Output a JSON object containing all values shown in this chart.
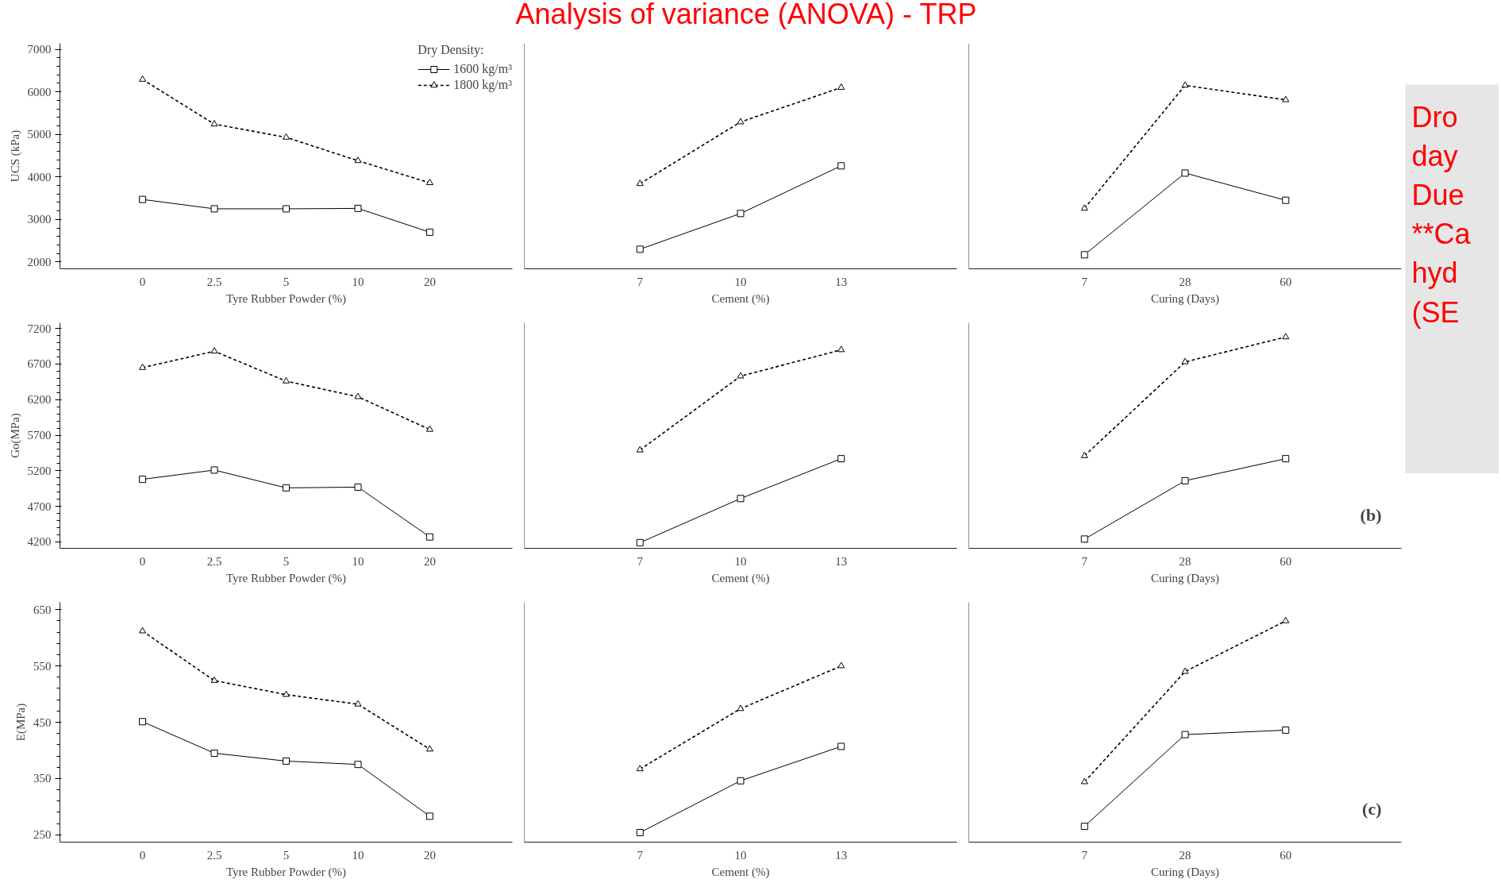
{
  "chart_data": [
    {
      "type": "other",
      "title": "Analysis of variance (ANOVA) - TRP"
    },
    {
      "type": "line",
      "xlabel": "Tyre Rubber Powder (%)",
      "ylabel": "UCS (kPa)",
      "legend": "top right",
      "legend_title": "Dry Density:",
      "categories": [
        "0",
        "2.5",
        "5",
        "10",
        "20"
      ],
      "ylim": [
        1840,
        7140
      ],
      "yticks": [
        2000,
        3000,
        4000,
        5000,
        6000,
        7000
      ],
      "series": [
        {
          "name": "1600 kg/m³",
          "color": "#000000",
          "marker": "square",
          "line_style": "solid",
          "values": [
            3470,
            3250,
            3250,
            3260,
            2700
          ]
        },
        {
          "name": "1800 kg/m³",
          "color": "#000000",
          "marker": "triangle",
          "line_style": "dashed",
          "values": [
            6290,
            5240,
            4930,
            4380,
            3860
          ]
        }
      ]
    },
    {
      "type": "line",
      "xlabel": "Cement (%)",
      "categories": [
        "7",
        "10",
        "13"
      ],
      "ylim": [
        1840,
        7140
      ],
      "yticks": [
        2000,
        3000,
        4000,
        5000,
        6000,
        7000
      ],
      "tick_labels": "x",
      "series": [
        {
          "color": "#000000",
          "marker": "square",
          "line_style": "solid",
          "values": [
            2300,
            3140,
            4260
          ]
        },
        {
          "color": "#000000",
          "marker": "triangle",
          "line_style": "dashed",
          "values": [
            3840,
            5290,
            6100
          ]
        }
      ]
    },
    {
      "type": "line",
      "xlabel": "Curing (Days)",
      "categories": [
        "7",
        "28",
        "60"
      ],
      "ylim": [
        1840,
        7140
      ],
      "yticks": [
        2000,
        3000,
        4000,
        5000,
        6000,
        7000
      ],
      "tick_labels": "x",
      "series": [
        {
          "color": "#000000",
          "marker": "square",
          "line_style": "solid",
          "values": [
            2170,
            4090,
            3450
          ]
        },
        {
          "color": "#000000",
          "marker": "triangle",
          "line_style": "dashed",
          "values": [
            3260,
            6150,
            5810
          ]
        }
      ]
    },
    {
      "type": "line",
      "xlabel": "Tyre Rubber Powder (%)",
      "ylabel": "Go(MPa)",
      "categories": [
        "0",
        "2.5",
        "5",
        "10",
        "20"
      ],
      "ylim": [
        4110,
        7280
      ],
      "yticks": [
        4200,
        4700,
        5200,
        5700,
        6200,
        6700,
        7200
      ],
      "series": [
        {
          "color": "#000000",
          "marker": "square",
          "line_style": "solid",
          "values": [
            5080,
            5210,
            4960,
            4970,
            4270
          ]
        },
        {
          "color": "#000000",
          "marker": "triangle",
          "line_style": "dashed",
          "values": [
            6650,
            6880,
            6460,
            6240,
            5780
          ]
        }
      ]
    },
    {
      "type": "line",
      "xlabel": "Cement (%)",
      "categories": [
        "7",
        "10",
        "13"
      ],
      "ylim": [
        4110,
        7280
      ],
      "yticks": [
        4200,
        4700,
        5200,
        5700,
        6200,
        6700,
        7200
      ],
      "tick_labels": "x",
      "series": [
        {
          "color": "#000000",
          "marker": "square",
          "line_style": "solid",
          "values": [
            4190,
            4810,
            5370
          ]
        },
        {
          "color": "#000000",
          "marker": "triangle",
          "line_style": "dashed",
          "values": [
            5490,
            6530,
            6900
          ]
        }
      ]
    },
    {
      "type": "line",
      "xlabel": "Curing (Days)",
      "categories": [
        "7",
        "28",
        "60"
      ],
      "ylim": [
        4110,
        7280
      ],
      "yticks": [
        4200,
        4700,
        5200,
        5700,
        6200,
        6700,
        7200
      ],
      "tick_labels": "x",
      "annotations": [
        "(b)"
      ],
      "series": [
        {
          "color": "#000000",
          "marker": "square",
          "line_style": "solid",
          "values": [
            4240,
            5060,
            5370
          ]
        },
        {
          "color": "#000000",
          "marker": "triangle",
          "line_style": "dashed",
          "values": [
            5410,
            6730,
            7080
          ]
        }
      ]
    },
    {
      "type": "line",
      "xlabel": "Tyre Rubber Powder (%)",
      "ylabel": "E(MPa)",
      "categories": [
        "0",
        "2.5",
        "5",
        "10",
        "20"
      ],
      "ylim": [
        237,
        663
      ],
      "yticks": [
        250,
        350,
        450,
        550,
        650
      ],
      "series": [
        {
          "color": "#000000",
          "marker": "square",
          "line_style": "solid",
          "values": [
            451,
            395,
            381,
            375,
            283
          ]
        },
        {
          "color": "#000000",
          "marker": "triangle",
          "line_style": "dashed",
          "values": [
            612,
            524,
            499,
            482,
            402
          ]
        }
      ]
    },
    {
      "type": "line",
      "xlabel": "Cement (%)",
      "categories": [
        "7",
        "10",
        "13"
      ],
      "ylim": [
        237,
        663
      ],
      "yticks": [
        250,
        350,
        450,
        550,
        650
      ],
      "tick_labels": "x",
      "series": [
        {
          "color": "#000000",
          "marker": "square",
          "line_style": "solid",
          "values": [
            254,
            346,
            407
          ]
        },
        {
          "color": "#000000",
          "marker": "triangle",
          "line_style": "dashed",
          "values": [
            367,
            474,
            550
          ]
        }
      ]
    },
    {
      "type": "line",
      "xlabel": "Curing (Days)",
      "categories": [
        "7",
        "28",
        "60"
      ],
      "ylim": [
        237,
        663
      ],
      "yticks": [
        250,
        350,
        450,
        550,
        650
      ],
      "tick_labels": "x",
      "annotations": [
        "(c)"
      ],
      "series": [
        {
          "color": "#000000",
          "marker": "square",
          "line_style": "solid",
          "values": [
            265,
            428,
            436
          ]
        },
        {
          "color": "#000000",
          "marker": "triangle",
          "line_style": "dashed",
          "values": [
            344,
            540,
            630
          ]
        }
      ]
    },
    {
      "type": "other",
      "annotations": [
        "Dro\nday\nDue\n**Ca\nhyd\n(SE"
      ]
    }
  ]
}
